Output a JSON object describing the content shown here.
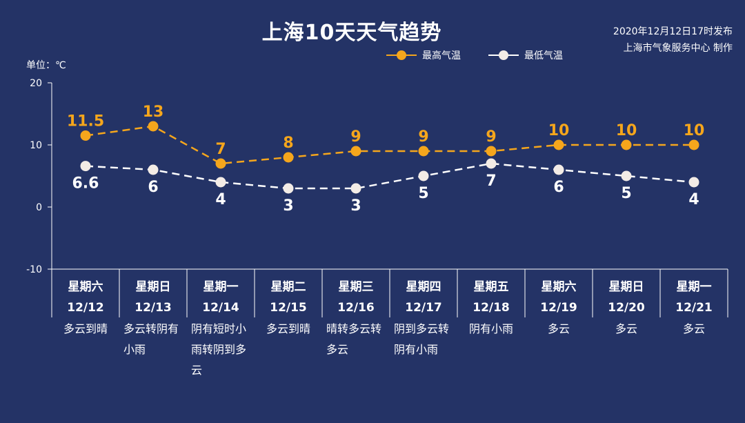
{
  "header": {
    "title": "上海10天天气趋势",
    "published": "2020年12月12日17时发布",
    "producer": "上海市气象服务中心 制作",
    "unit_label": "单位：℃"
  },
  "legend": {
    "high_label": "最高气温",
    "low_label": "最低气温"
  },
  "colors": {
    "background": "#243366",
    "high": "#f5a61c",
    "low": "#ffffff"
  },
  "days": [
    {
      "weekday": "星期六",
      "date": "12/12",
      "weather": "多云到晴"
    },
    {
      "weekday": "星期日",
      "date": "12/13",
      "weather": "多云转阴有小雨"
    },
    {
      "weekday": "星期一",
      "date": "12/14",
      "weather": "阴有短时小雨转阴到多云"
    },
    {
      "weekday": "星期二",
      "date": "12/15",
      "weather": "多云到晴"
    },
    {
      "weekday": "星期三",
      "date": "12/16",
      "weather": "晴转多云转多云"
    },
    {
      "weekday": "星期四",
      "date": "12/17",
      "weather": "阴到多云转阴有小雨"
    },
    {
      "weekday": "星期五",
      "date": "12/18",
      "weather": "阴有小雨"
    },
    {
      "weekday": "星期六",
      "date": "12/19",
      "weather": "多云"
    },
    {
      "weekday": "星期日",
      "date": "12/20",
      "weather": "多云"
    },
    {
      "weekday": "星期一",
      "date": "12/21",
      "weather": "多云"
    }
  ],
  "chart_data": {
    "type": "line",
    "title": "上海10天天气趋势",
    "ylabel": "单位：℃",
    "ylim": [
      -10,
      20
    ],
    "yticks": [
      -10,
      0,
      10,
      20
    ],
    "categories": [
      "12/12",
      "12/13",
      "12/14",
      "12/15",
      "12/16",
      "12/17",
      "12/18",
      "12/19",
      "12/20",
      "12/21"
    ],
    "series": [
      {
        "name": "最高气温",
        "values": [
          11.5,
          13,
          7,
          8,
          9,
          9,
          9,
          10,
          10,
          10
        ],
        "labels": [
          "11.5",
          "13",
          "7",
          "8",
          "9",
          "9",
          "9",
          "10",
          "10",
          "10"
        ],
        "color": "#f5a61c",
        "label_position": "above"
      },
      {
        "name": "最低气温",
        "values": [
          6.6,
          6,
          4,
          3,
          3,
          5,
          7,
          6,
          5,
          4
        ],
        "labels": [
          "6.6",
          "6",
          "4",
          "3",
          "3",
          "5",
          "7",
          "6",
          "5",
          "4"
        ],
        "color": "#ffffff",
        "label_position": "below"
      }
    ]
  }
}
